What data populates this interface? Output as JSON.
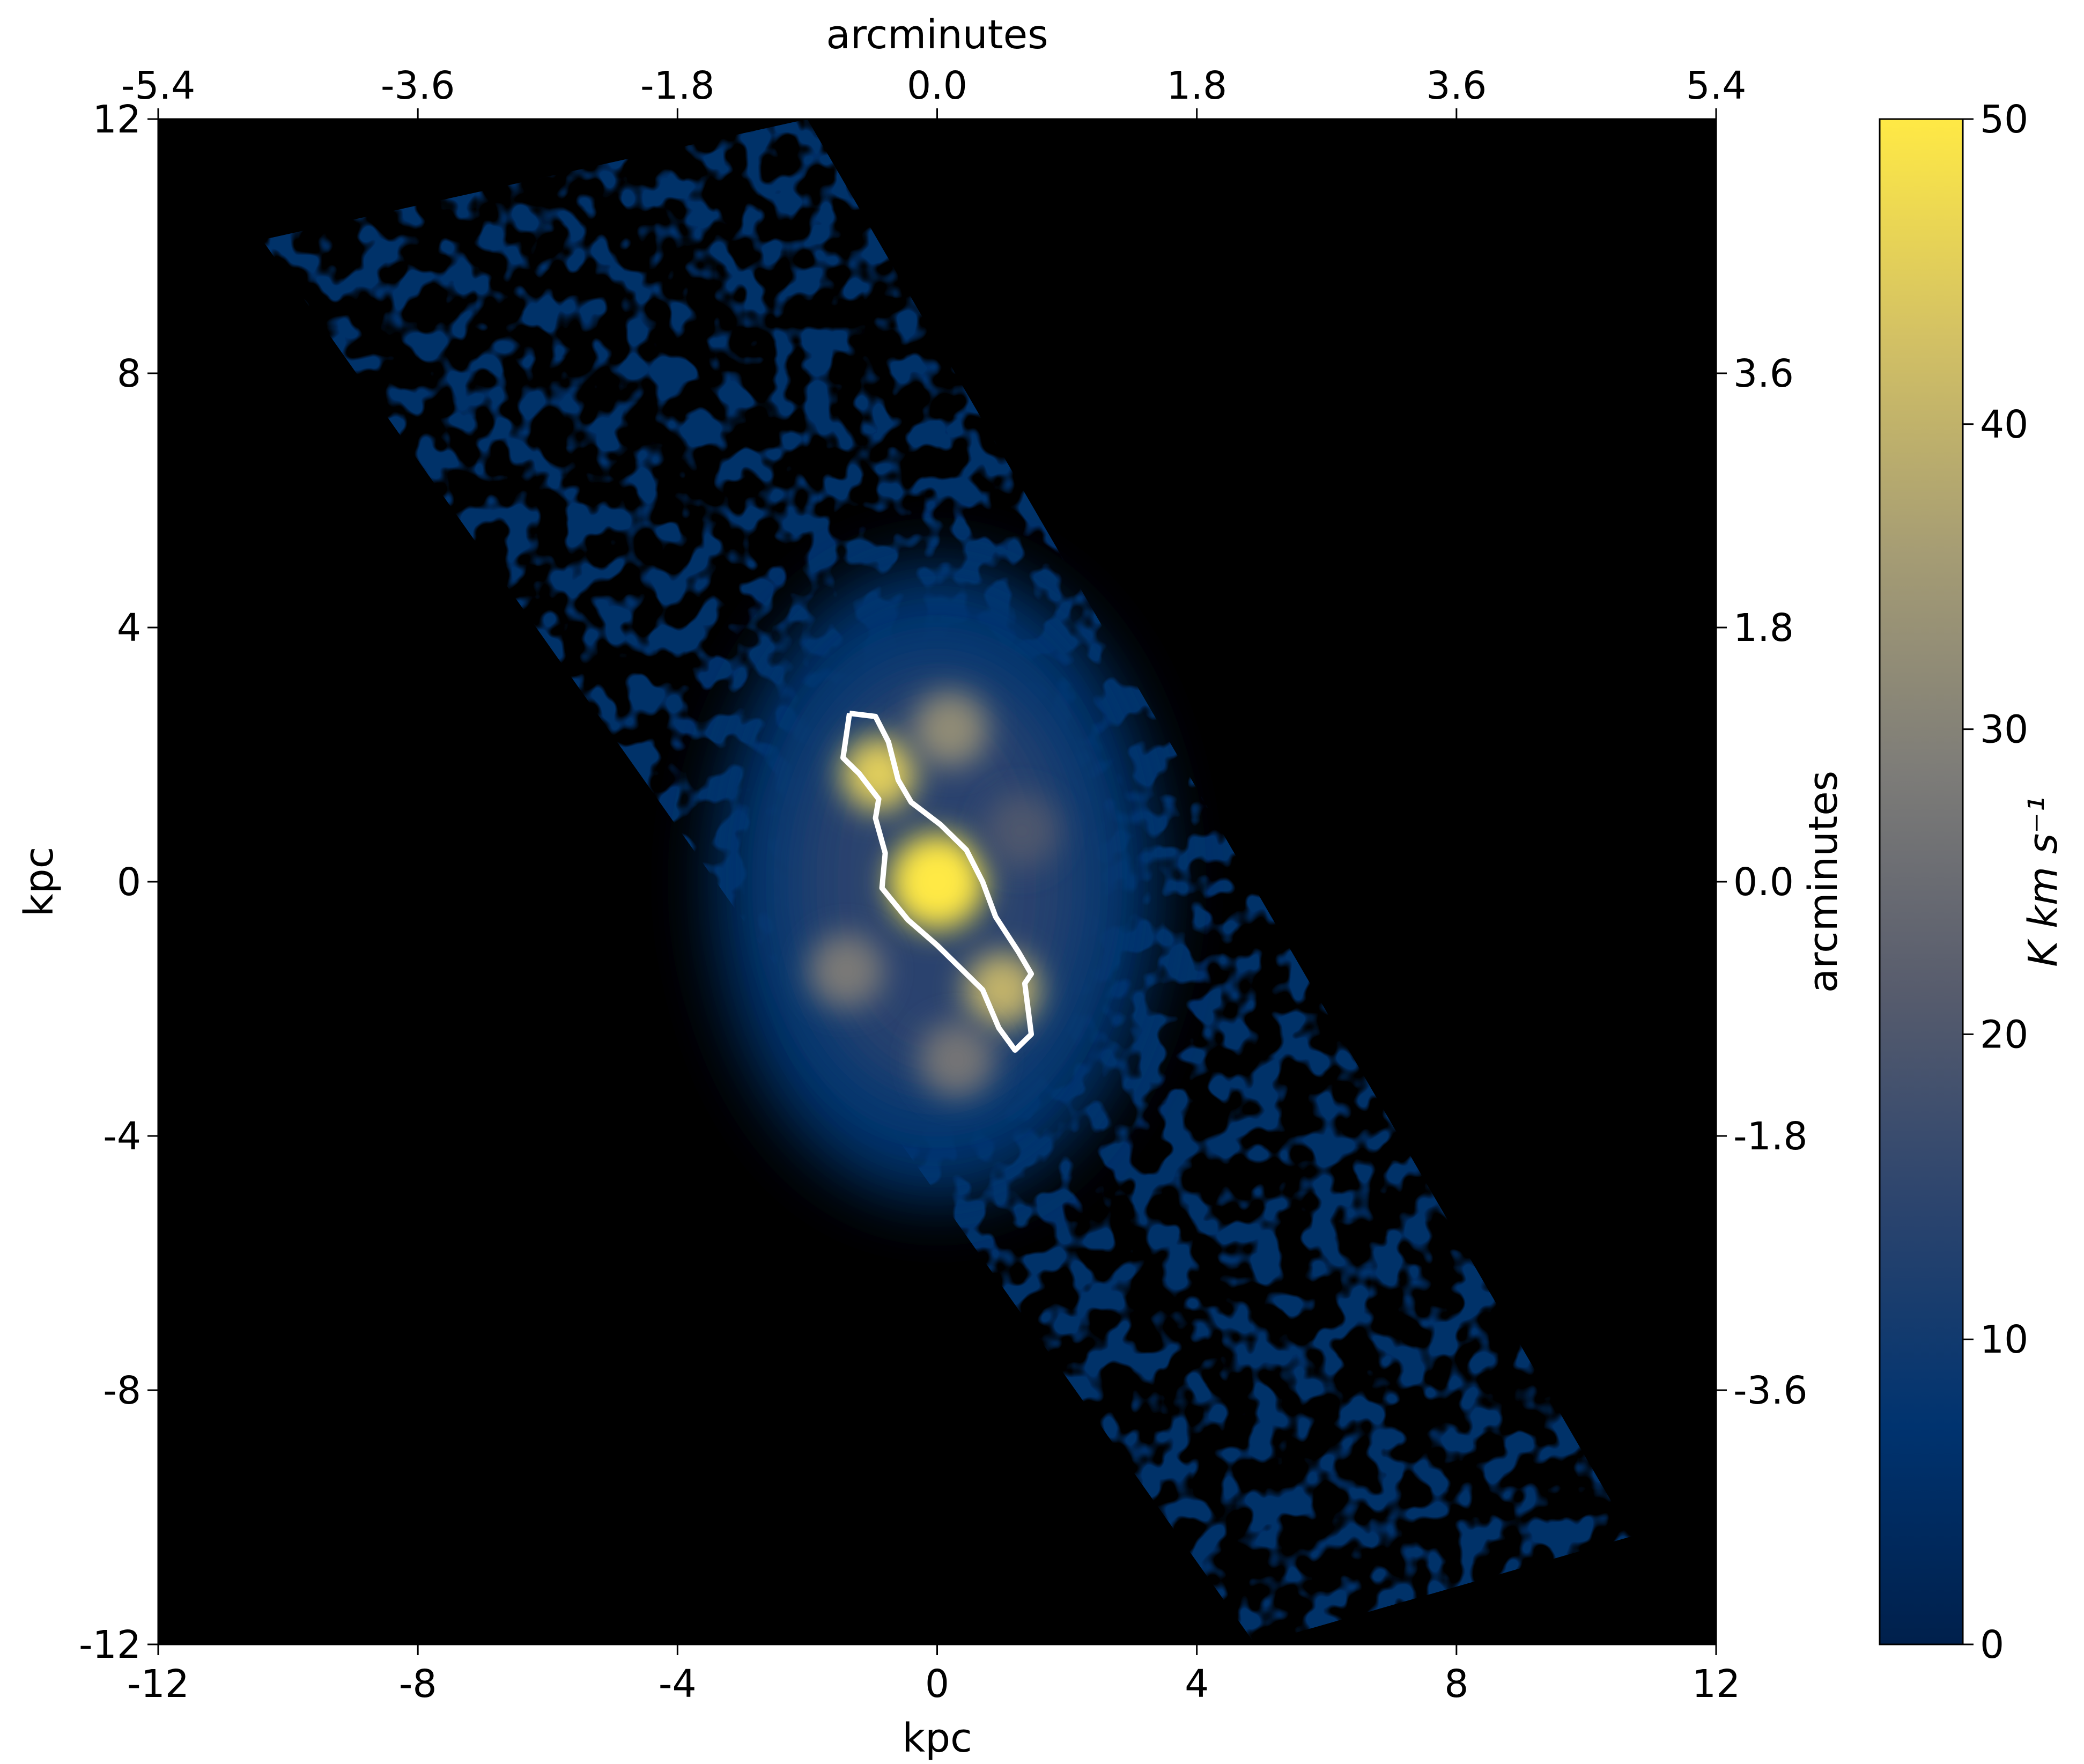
{
  "chart_data": {
    "type": "heatmap",
    "title": "",
    "xlabel": "kpc",
    "ylabel": "kpc",
    "top_xlabel": "arcminutes",
    "right_ylabel": "arcminutes",
    "xlim": [
      -12,
      12
    ],
    "ylim": [
      -12,
      12
    ],
    "x_ticks": [
      "-12",
      "-8",
      "-4",
      "0",
      "4",
      "8",
      "12"
    ],
    "x_tick_values": [
      -12,
      -8,
      -4,
      0,
      4,
      8,
      12
    ],
    "y_ticks": [
      "12",
      "8",
      "4",
      "0",
      "-4",
      "-8",
      "-12"
    ],
    "y_tick_values": [
      12,
      8,
      4,
      0,
      -4,
      -8,
      -12
    ],
    "top_ticks": [
      "-5.4",
      "-3.6",
      "-1.8",
      "0.0",
      "1.8",
      "3.6",
      "5.4"
    ],
    "top_tick_values": [
      -5.4,
      -3.6,
      -1.8,
      0.0,
      1.8,
      3.6,
      5.4
    ],
    "right_ticks": [
      "3.6",
      "1.8",
      "0.0",
      "-1.8",
      "-3.6"
    ],
    "right_tick_values": [
      3.6,
      1.8,
      0.0,
      -1.8,
      -3.6
    ],
    "arcmin_per_kpc": 0.45,
    "colorbar": {
      "label": "K km s⁻¹",
      "range": [
        0,
        50
      ],
      "ticks": [
        "0",
        "10",
        "20",
        "30",
        "40",
        "50"
      ],
      "tick_values": [
        0,
        10,
        20,
        30,
        40,
        50
      ],
      "colormap": "cividis",
      "colors": [
        "#00204c",
        "#00336f",
        "#2b446e",
        "#575c6d",
        "#7d7c78",
        "#a59c74",
        "#d3c164",
        "#ffe945"
      ]
    },
    "footprint_corners_kpc": [
      [
        -10.4,
        10.1
      ],
      [
        -2.0,
        12.0
      ],
      [
        10.7,
        -10.3
      ],
      [
        4.9,
        -12.0
      ]
    ],
    "emission_peaks": [
      {
        "x": 0.0,
        "y": 0.0,
        "value": 50
      },
      {
        "x": -0.9,
        "y": 1.7,
        "value": 45
      },
      {
        "x": 1.0,
        "y": -1.7,
        "value": 40
      },
      {
        "x": 0.2,
        "y": 2.4,
        "value": 32
      },
      {
        "x": -1.4,
        "y": -1.4,
        "value": 28
      },
      {
        "x": 0.3,
        "y": -2.8,
        "value": 27
      },
      {
        "x": 1.3,
        "y": 0.8,
        "value": 20
      }
    ],
    "contour": {
      "color": "#ffffff",
      "points": [
        [
          -1.35,
          2.65
        ],
        [
          -0.95,
          2.6
        ],
        [
          -0.75,
          2.2
        ],
        [
          -0.6,
          1.6
        ],
        [
          -0.4,
          1.25
        ],
        [
          0.05,
          0.9
        ],
        [
          0.45,
          0.5
        ],
        [
          0.7,
          0.0
        ],
        [
          0.9,
          -0.55
        ],
        [
          1.25,
          -1.1
        ],
        [
          1.45,
          -1.45
        ],
        [
          1.35,
          -1.6
        ],
        [
          1.45,
          -2.4
        ],
        [
          1.2,
          -2.65
        ],
        [
          0.95,
          -2.3
        ],
        [
          0.7,
          -1.7
        ],
        [
          0.25,
          -1.25
        ],
        [
          0.0,
          -1.0
        ],
        [
          -0.45,
          -0.6
        ],
        [
          -0.85,
          -0.1
        ],
        [
          -0.8,
          0.45
        ],
        [
          -0.95,
          1.0
        ],
        [
          -0.9,
          1.3
        ],
        [
          -1.2,
          1.7
        ],
        [
          -1.45,
          1.95
        ],
        [
          -1.35,
          2.65
        ]
      ]
    }
  }
}
